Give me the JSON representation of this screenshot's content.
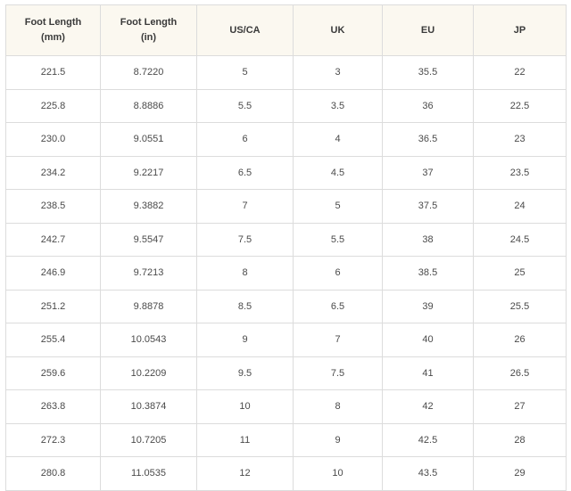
{
  "table": {
    "headers": [
      "Foot Length (mm)",
      "Foot Length (in)",
      "US/CA",
      "UK",
      "EU",
      "JP"
    ],
    "rows": [
      [
        "221.5",
        "8.7220",
        "5",
        "3",
        "35.5",
        "22"
      ],
      [
        "225.8",
        "8.8886",
        "5.5",
        "3.5",
        "36",
        "22.5"
      ],
      [
        "230.0",
        "9.0551",
        "6",
        "4",
        "36.5",
        "23"
      ],
      [
        "234.2",
        "9.2217",
        "6.5",
        "4.5",
        "37",
        "23.5"
      ],
      [
        "238.5",
        "9.3882",
        "7",
        "5",
        "37.5",
        "24"
      ],
      [
        "242.7",
        "9.5547",
        "7.5",
        "5.5",
        "38",
        "24.5"
      ],
      [
        "246.9",
        "9.7213",
        "8",
        "6",
        "38.5",
        "25"
      ],
      [
        "251.2",
        "9.8878",
        "8.5",
        "6.5",
        "39",
        "25.5"
      ],
      [
        "255.4",
        "10.0543",
        "9",
        "7",
        "40",
        "26"
      ],
      [
        "259.6",
        "10.2209",
        "9.5",
        "7.5",
        "41",
        "26.5"
      ],
      [
        "263.8",
        "10.3874",
        "10",
        "8",
        "42",
        "27"
      ],
      [
        "272.3",
        "10.7205",
        "11",
        "9",
        "42.5",
        "28"
      ],
      [
        "280.8",
        "11.0535",
        "12",
        "10",
        "43.5",
        "29"
      ]
    ]
  }
}
